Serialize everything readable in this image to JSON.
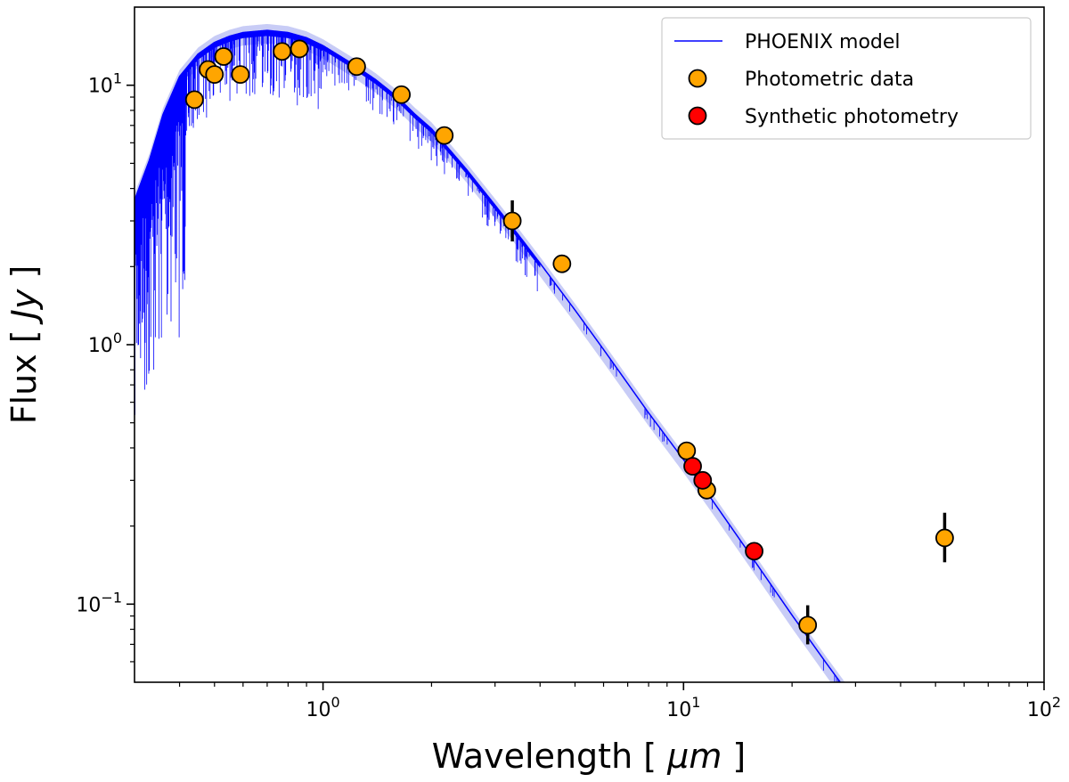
{
  "chart_data": {
    "type": "scatter",
    "xscale": "log",
    "yscale": "log",
    "xlim": [
      0.3,
      100
    ],
    "ylim": [
      0.05,
      20
    ],
    "xlabel": {
      "pre": "Wavelength [ ",
      "unit": "μm",
      "post": " ]"
    },
    "ylabel": {
      "pre": "Flux [ ",
      "unit": "Jy",
      "post": " ]"
    },
    "xticks": [
      {
        "value": 1,
        "base": "10",
        "exp": "0"
      },
      {
        "value": 10,
        "base": "10",
        "exp": "1"
      },
      {
        "value": 100,
        "base": "10",
        "exp": "2"
      }
    ],
    "yticks": [
      {
        "value": 0.1,
        "base": "10",
        "exp": "−1"
      },
      {
        "value": 1,
        "base": "10",
        "exp": "0"
      },
      {
        "value": 10,
        "base": "10",
        "exp": "1"
      }
    ],
    "legend": {
      "position": "upper right",
      "entries": [
        {
          "key": "model",
          "label": "PHOENIX model"
        },
        {
          "key": "phot",
          "label": "Photometric data"
        },
        {
          "key": "synth",
          "label": "Synthetic photometry"
        }
      ]
    },
    "colors": {
      "model": "#0000ff",
      "model_band": "#c8ccf6",
      "phot": "#ffa500",
      "synth": "#ff0000",
      "errorbar": "#000000"
    },
    "series": [
      {
        "name": "PHOENIX model",
        "kind": "line",
        "x": [
          0.3,
          0.33,
          0.36,
          0.4,
          0.45,
          0.5,
          0.55,
          0.6,
          0.7,
          0.8,
          0.9,
          1.0,
          1.2,
          1.4,
          1.6,
          1.8,
          2.0,
          2.5,
          3.0,
          3.5,
          4.0,
          5.0,
          6.0,
          8.0,
          10.0,
          12.0,
          15.0,
          20.0,
          25.0,
          28.0
        ],
        "y": [
          3.5,
          5.0,
          7.5,
          10.5,
          12.8,
          14.2,
          15.0,
          15.5,
          15.8,
          15.5,
          14.8,
          13.8,
          11.8,
          10.2,
          8.8,
          7.5,
          6.6,
          4.6,
          3.35,
          2.55,
          2.0,
          1.32,
          0.93,
          0.53,
          0.35,
          0.245,
          0.157,
          0.088,
          0.057,
          0.046
        ]
      },
      {
        "name": "Photometric data",
        "kind": "scatter",
        "points": [
          {
            "x": 0.44,
            "y": 8.8
          },
          {
            "x": 0.48,
            "y": 11.5
          },
          {
            "x": 0.5,
            "y": 11.0
          },
          {
            "x": 0.53,
            "y": 12.9
          },
          {
            "x": 0.59,
            "y": 11.0
          },
          {
            "x": 0.77,
            "y": 13.5
          },
          {
            "x": 0.86,
            "y": 13.8
          },
          {
            "x": 1.24,
            "y": 11.8
          },
          {
            "x": 1.65,
            "y": 9.2
          },
          {
            "x": 2.17,
            "y": 6.4
          },
          {
            "x": 3.35,
            "y": 3.0,
            "yerr": [
              2.5,
              3.6
            ]
          },
          {
            "x": 4.6,
            "y": 2.05
          },
          {
            "x": 10.2,
            "y": 0.39
          },
          {
            "x": 11.6,
            "y": 0.275
          },
          {
            "x": 22.1,
            "y": 0.083,
            "yerr": [
              0.07,
              0.099
            ]
          },
          {
            "x": 53.0,
            "y": 0.18,
            "yerr": [
              0.145,
              0.225
            ]
          }
        ]
      },
      {
        "name": "Synthetic photometry",
        "kind": "scatter",
        "points": [
          {
            "x": 10.6,
            "y": 0.34
          },
          {
            "x": 11.3,
            "y": 0.3
          },
          {
            "x": 15.7,
            "y": 0.16
          }
        ]
      }
    ]
  }
}
